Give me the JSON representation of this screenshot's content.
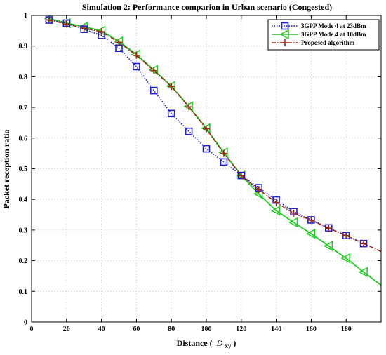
{
  "chart_data": {
    "type": "line",
    "title": "Simulation 2: Performance comparion in Urban scenario (Congested)",
    "xlabel": "Distance (",
    "xlabel_symbol": "D",
    "xlabel_subscript": "xy",
    "xlabel_end": ")",
    "ylabel": "Packet reception ratio",
    "xlim": [
      0,
      200
    ],
    "ylim": [
      0,
      1
    ],
    "grid": true,
    "legend_position": "top-right",
    "x_ticks": [
      0,
      20,
      40,
      60,
      80,
      100,
      120,
      140,
      160,
      180
    ],
    "y_ticks": [
      0,
      0.1,
      0.2,
      0.3,
      0.4,
      0.5,
      0.6,
      0.7,
      0.8,
      0.9,
      1
    ],
    "y_tick_labels": [
      "0",
      "0.1",
      "0.2",
      "0.3",
      "0.4",
      "0.5",
      "0.6",
      "0.7",
      "0.8",
      "0.9",
      "1"
    ],
    "series": [
      {
        "name": "3GPP Mode 4 at 23dBm",
        "color": "#1f1fd6",
        "line_style": "dotted",
        "marker": "square",
        "x": [
          10,
          20,
          30,
          40,
          50,
          60,
          70,
          80,
          90,
          100,
          110,
          120,
          130,
          140,
          150,
          160,
          170,
          180,
          190
        ],
        "y": [
          0.985,
          0.975,
          0.955,
          0.935,
          0.893,
          0.833,
          0.755,
          0.68,
          0.622,
          0.565,
          0.522,
          0.478,
          0.438,
          0.398,
          0.36,
          0.333,
          0.307,
          0.282,
          0.256
        ]
      },
      {
        "name": "3GPP Mode 4 at 10dBm",
        "color": "#22cc22",
        "line_style": "solid",
        "marker": "triangle-left",
        "x": [
          10,
          20,
          30,
          40,
          50,
          60,
          70,
          80,
          90,
          100,
          110,
          120,
          130,
          140,
          150,
          160,
          170,
          180,
          190,
          200
        ],
        "y": [
          0.99,
          0.975,
          0.963,
          0.95,
          0.915,
          0.873,
          0.822,
          0.77,
          0.703,
          0.632,
          0.553,
          0.478,
          0.418,
          0.363,
          0.325,
          0.288,
          0.248,
          0.208,
          0.163,
          0.12
        ]
      },
      {
        "name": "Proposed algorithm",
        "color": "#9a2a1a",
        "line_style": "dashdot",
        "marker": "plus",
        "x": [
          10,
          20,
          30,
          40,
          50,
          60,
          70,
          80,
          90,
          100,
          110,
          120,
          130,
          140,
          150,
          160,
          170,
          180,
          190,
          200
        ],
        "y": [
          0.985,
          0.972,
          0.958,
          0.947,
          0.912,
          0.87,
          0.82,
          0.768,
          0.702,
          0.63,
          0.55,
          0.477,
          0.432,
          0.39,
          0.355,
          0.332,
          0.306,
          0.282,
          0.256,
          0.23
        ]
      }
    ]
  }
}
